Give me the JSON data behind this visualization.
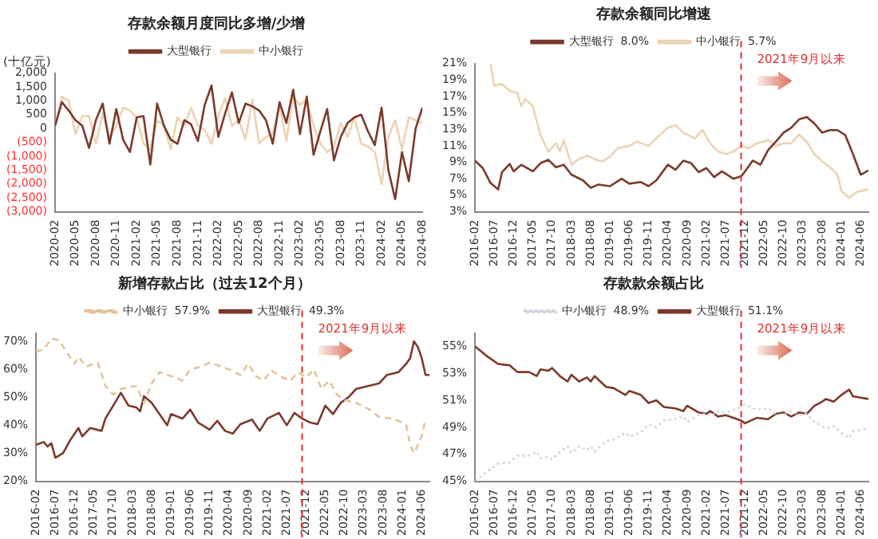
{
  "chart_data": [
    {
      "type": "line",
      "title": "存款余额月度同比多增/少增",
      "ylabel": "(十亿元)",
      "legend": "top",
      "xlim": [
        "2020-02",
        "2024-08"
      ],
      "ylim": [
        -3000,
        2000
      ],
      "xticks": [
        "2020-02",
        "2020-05",
        "2020-08",
        "2020-11",
        "2021-02",
        "2021-05",
        "2021-08",
        "2021-11",
        "2022-02",
        "2022-05",
        "2022-08",
        "2022-11",
        "2023-02",
        "2023-05",
        "2023-08",
        "2023-11",
        "2024-02",
        "2024-05",
        "2024-08"
      ],
      "yticks": [
        {
          "value": 2000,
          "label": "2,000"
        },
        {
          "value": 1500,
          "label": "1,500"
        },
        {
          "value": 1000,
          "label": "1,000"
        },
        500,
        0,
        {
          "value": -500,
          "label": "(500)"
        },
        {
          "value": -1000,
          "label": "(1,000)"
        },
        {
          "value": -1500,
          "label": "(1,500)"
        },
        {
          "value": -2000,
          "label": "(2,000)"
        },
        {
          "value": -2500,
          "label": "(2,500)"
        },
        {
          "value": -3000,
          "label": "(3,000)"
        }
      ],
      "x": [
        "2020-02",
        "2020-03",
        "2020-04",
        "2020-05",
        "2020-06",
        "2020-07",
        "2020-08",
        "2020-09",
        "2020-10",
        "2020-11",
        "2020-12",
        "2021-01",
        "2021-02",
        "2021-03",
        "2021-04",
        "2021-05",
        "2021-06",
        "2021-07",
        "2021-08",
        "2021-09",
        "2021-10",
        "2021-11",
        "2021-12",
        "2022-01",
        "2022-02",
        "2022-03",
        "2022-04",
        "2022-05",
        "2022-06",
        "2022-07",
        "2022-08",
        "2022-09",
        "2022-10",
        "2022-11",
        "2022-12",
        "2023-01",
        "2023-02",
        "2023-03",
        "2023-04",
        "2023-05",
        "2023-06",
        "2023-07",
        "2023-08",
        "2023-09",
        "2023-10",
        "2023-11",
        "2023-12",
        "2024-01",
        "2024-02",
        "2024-03",
        "2024-04",
        "2024-05",
        "2024-06",
        "2024-07",
        "2024-08"
      ],
      "series": [
        {
          "name": "大型银行",
          "color": "#7b3a2c",
          "values": [
            100,
            950,
            650,
            300,
            100,
            -700,
            300,
            900,
            -550,
            700,
            -400,
            -850,
            400,
            450,
            -1300,
            900,
            100,
            -400,
            -550,
            300,
            150,
            -450,
            850,
            1550,
            -300,
            550,
            1300,
            200,
            900,
            800,
            650,
            300,
            -550,
            950,
            200,
            1400,
            -200,
            1150,
            -950,
            -100,
            700,
            -1150,
            -300,
            200,
            400,
            500,
            -100,
            -600,
            750,
            -1500,
            -2550,
            -850,
            -1900,
            0,
            750
          ]
        },
        {
          "name": "中小银行",
          "color": "#ecd3b4",
          "values": [
            100,
            1150,
            1000,
            -200,
            450,
            450,
            -550,
            550,
            -300,
            100,
            750,
            650,
            400,
            -550,
            -750,
            300,
            100,
            -750,
            400,
            100,
            750,
            100,
            -50,
            -550,
            450,
            1100,
            100,
            300,
            -400,
            1050,
            -550,
            -300,
            -200,
            850,
            -450,
            1150,
            850,
            1050,
            100,
            -550,
            -850,
            -650,
            200,
            -300,
            400,
            -550,
            -650,
            -850,
            -2000,
            -300,
            300,
            -750,
            400,
            300,
            200
          ]
        }
      ]
    },
    {
      "type": "line",
      "title": "存款余额同比增速",
      "legend": "top",
      "xlim": [
        "2016-02",
        "2024-08"
      ],
      "ylim": [
        3,
        21
      ],
      "xticks": [
        "2016-02",
        "2016-07",
        "2016-12",
        "2017-05",
        "2017-10",
        "2018-03",
        "2018-08",
        "2019-01",
        "2019-06",
        "2019-11",
        "2020-04",
        "2020-09",
        "2021-02",
        "2021-07",
        "2021-12",
        "2022-05",
        "2022-10",
        "2023-03",
        "2023-08",
        "2024-01",
        "2024-06"
      ],
      "yticks": [
        {
          "value": 21,
          "label": "21%"
        },
        {
          "value": 19,
          "label": "19%"
        },
        {
          "value": 17,
          "label": "17%"
        },
        {
          "value": 15,
          "label": "15%"
        },
        {
          "value": 13,
          "label": "13%"
        },
        {
          "value": 11,
          "label": "11%"
        },
        {
          "value": 9,
          "label": "9%"
        },
        {
          "value": 7,
          "label": "7%"
        },
        {
          "value": 5,
          "label": "5%"
        },
        {
          "value": 3,
          "label": "3%"
        }
      ],
      "ref_lines": [
        {
          "axis": "x",
          "value": "2021-11",
          "label": "2021年9月以来",
          "color": "#e03030",
          "line_style": "dashed"
        }
      ],
      "series": [
        {
          "name": "大型银行  8.0%",
          "color": "#7b3a2c",
          "x": [
            "2016-02",
            "2016-04",
            "2016-06",
            "2016-08",
            "2016-09",
            "2016-11",
            "2016-12",
            "2017-02",
            "2017-05",
            "2017-07",
            "2017-09",
            "2017-11",
            "2018-01",
            "2018-03",
            "2018-06",
            "2018-08",
            "2018-10",
            "2019-01",
            "2019-04",
            "2019-06",
            "2019-09",
            "2019-11",
            "2020-01",
            "2020-04",
            "2020-06",
            "2020-08",
            "2020-10",
            "2020-12",
            "2021-02",
            "2021-04",
            "2021-06",
            "2021-09",
            "2021-11",
            "2021-12",
            "2022-02",
            "2022-04",
            "2022-06",
            "2022-08",
            "2022-10",
            "2022-12",
            "2023-02",
            "2023-04",
            "2023-06",
            "2023-08",
            "2023-10",
            "2023-12",
            "2024-02",
            "2024-04",
            "2024-06",
            "2024-08"
          ],
          "values": [
            9.2,
            8.3,
            6.5,
            5.7,
            7.8,
            8.8,
            7.9,
            8.7,
            7.9,
            8.9,
            9.3,
            8.4,
            8.7,
            7.5,
            6.8,
            5.9,
            6.3,
            6.1,
            7.0,
            6.4,
            6.6,
            6.1,
            6.8,
            8.7,
            8.1,
            9.2,
            8.9,
            7.8,
            8.3,
            7.2,
            7.9,
            7.0,
            7.3,
            7.9,
            9.2,
            8.7,
            10.5,
            11.5,
            12.6,
            13.2,
            14.2,
            14.5,
            13.7,
            12.6,
            12.9,
            12.9,
            12.3,
            10.0,
            7.5,
            8.0
          ]
        },
        {
          "name": "中小银行  5.7%",
          "color": "#ecd3b4",
          "x": [
            "2016-06",
            "2016-07",
            "2016-09",
            "2016-11",
            "2017-01",
            "2017-02",
            "2017-03",
            "2017-05",
            "2017-07",
            "2017-09",
            "2017-11",
            "2017-12",
            "2018-01",
            "2018-03",
            "2018-05",
            "2018-07",
            "2018-09",
            "2018-11",
            "2019-01",
            "2019-03",
            "2019-06",
            "2019-08",
            "2019-11",
            "2020-01",
            "2020-04",
            "2020-06",
            "2020-08",
            "2020-11",
            "2021-01",
            "2021-03",
            "2021-05",
            "2021-07",
            "2021-09",
            "2021-11",
            "2022-01",
            "2022-03",
            "2022-06",
            "2022-08",
            "2022-10",
            "2022-12",
            "2023-02",
            "2023-04",
            "2023-06",
            "2023-08",
            "2023-10",
            "2023-12",
            "2024-01",
            "2024-03",
            "2024-05",
            "2024-08"
          ],
          "values": [
            21,
            18.3,
            18.5,
            17.7,
            17.4,
            15.8,
            16.7,
            15.8,
            12.3,
            10.3,
            11.3,
            10.3,
            11.7,
            8.7,
            9.4,
            9.8,
            9.4,
            9.1,
            9.7,
            10.7,
            11.0,
            11.5,
            11.0,
            11.9,
            13.2,
            13.5,
            12.6,
            11.9,
            12.9,
            11.3,
            10.3,
            10.0,
            10.3,
            11.0,
            10.7,
            11.3,
            11.7,
            11.0,
            11.3,
            11.3,
            12.4,
            11.5,
            10.0,
            9.1,
            8.4,
            7.5,
            5.5,
            4.7,
            5.4,
            5.7
          ]
        }
      ]
    },
    {
      "type": "line",
      "title": "新增存款占比（过去12个月）",
      "legend": "top",
      "xlim": [
        "2016-02",
        "2024-08"
      ],
      "ylim": [
        20,
        73
      ],
      "xticks": [
        "2016-02",
        "2016-07",
        "2016-12",
        "2017-05",
        "2017-10",
        "2018-03",
        "2018-08",
        "2019-01",
        "2019-06",
        "2019-11",
        "2020-04",
        "2020-09",
        "2021-02",
        "2021-07",
        "2021-12",
        "2022-05",
        "2022-10",
        "2023-03",
        "2023-08",
        "2024-01",
        "2024-06"
      ],
      "yticks": [
        {
          "value": 70,
          "label": "70%"
        },
        {
          "value": 60,
          "label": "60%"
        },
        {
          "value": 50,
          "label": "50%"
        },
        {
          "value": 40,
          "label": "40%"
        },
        {
          "value": 30,
          "label": "30%"
        },
        {
          "value": 20,
          "label": "20%"
        }
      ],
      "ref_lines": [
        {
          "axis": "x",
          "value": "2021-11",
          "label": "2021年9月以来",
          "color": "#e03030",
          "line_style": "dashed"
        }
      ],
      "series": [
        {
          "name": "中小银行  57.9%",
          "color": "#e3c39c",
          "line_style": "dashed",
          "x": [
            "2016-02",
            "2016-04",
            "2016-06",
            "2016-08",
            "2016-10",
            "2016-12",
            "2017-01",
            "2017-03",
            "2017-05",
            "2017-06",
            "2017-08",
            "2017-10",
            "2017-12",
            "2018-02",
            "2018-04",
            "2018-06",
            "2018-08",
            "2018-10",
            "2019-01",
            "2019-04",
            "2019-06",
            "2019-09",
            "2019-11",
            "2020-02",
            "2020-04",
            "2020-07",
            "2020-09",
            "2020-11",
            "2021-01",
            "2021-03",
            "2021-06",
            "2021-08",
            "2021-10",
            "2021-12",
            "2022-02",
            "2022-04",
            "2022-06",
            "2022-08",
            "2022-10",
            "2023-01",
            "2023-04",
            "2023-07",
            "2023-10",
            "2023-12",
            "2024-02",
            "2024-03",
            "2024-04",
            "2024-06",
            "2024-07"
          ],
          "values": [
            66.4,
            67,
            71,
            70.4,
            66,
            62,
            64.4,
            61,
            62,
            62.4,
            54,
            51,
            53,
            53.6,
            54,
            48,
            55,
            59,
            57.6,
            56,
            60,
            61,
            62.4,
            61,
            60,
            58,
            62,
            57.6,
            56,
            59.6,
            57,
            56,
            59,
            57,
            60,
            53,
            56,
            51,
            49,
            48,
            46,
            43,
            42.4,
            41.6,
            40,
            33,
            30,
            36,
            42.4
          ]
        },
        {
          "name": "大型银行  49.3%",
          "color": "#7b3a2c",
          "x": [
            "2016-02",
            "2016-04",
            "2016-05",
            "2016-06",
            "2016-07",
            "2016-09",
            "2016-11",
            "2017-01",
            "2017-02",
            "2017-04",
            "2017-07",
            "2017-08",
            "2017-10",
            "2017-12",
            "2018-02",
            "2018-04",
            "2018-05",
            "2018-06",
            "2018-08",
            "2018-10",
            "2018-12",
            "2019-01",
            "2019-04",
            "2019-06",
            "2019-08",
            "2019-11",
            "2020-01",
            "2020-03",
            "2020-05",
            "2020-07",
            "2020-10",
            "2020-12",
            "2021-02",
            "2021-05",
            "2021-07",
            "2021-09",
            "2021-11",
            "2022-01",
            "2022-03",
            "2022-05",
            "2022-07",
            "2022-09",
            "2022-11",
            "2023-01",
            "2023-04",
            "2023-07",
            "2023-09",
            "2023-12",
            "2024-02",
            "2024-03",
            "2024-04",
            "2024-05",
            "2024-06",
            "2024-07",
            "2024-08"
          ],
          "values": [
            33,
            34,
            32.4,
            33.6,
            28.4,
            30,
            35,
            39,
            36,
            39,
            38,
            42.4,
            47,
            51.6,
            47,
            46.4,
            45,
            50.4,
            48,
            44,
            40,
            44,
            42.4,
            45.6,
            41,
            38.4,
            41.6,
            38,
            37,
            40.4,
            42,
            38,
            42.4,
            44.4,
            40,
            44.4,
            42.4,
            41,
            40.4,
            47,
            44,
            48,
            50,
            53,
            54,
            55,
            58,
            59,
            62,
            64,
            70,
            68,
            64,
            58,
            58
          ]
        }
      ]
    },
    {
      "type": "line",
      "title": "存款款余额占比",
      "legend": "top",
      "xlim": [
        "2016-02",
        "2024-08"
      ],
      "ylim": [
        45,
        56
      ],
      "xticks": [
        "2016-02",
        "2016-07",
        "2016-12",
        "2017-05",
        "2017-10",
        "2018-03",
        "2018-08",
        "2019-01",
        "2019-06",
        "2019-11",
        "2020-04",
        "2020-09",
        "2021-02",
        "2021-07",
        "2021-12",
        "2022-05",
        "2022-10",
        "2023-03",
        "2023-08",
        "2024-01",
        "2024-06"
      ],
      "yticks": [
        {
          "value": 55,
          "label": "55%"
        },
        {
          "value": 53,
          "label": "53%"
        },
        {
          "value": 51,
          "label": "51%"
        },
        {
          "value": 49,
          "label": "49%"
        },
        {
          "value": 47,
          "label": "47%"
        },
        {
          "value": 45,
          "label": "45%"
        }
      ],
      "ref_lines": [
        {
          "axis": "x",
          "value": "2021-11",
          "label": "2021年9月以来",
          "color": "#e03030",
          "line_style": "dashed"
        }
      ],
      "series": [
        {
          "name": "中小银行  48.9%",
          "color": "#d6d6e0",
          "line_style": "dotted",
          "x": [
            "2016-02",
            "2016-05",
            "2016-08",
            "2016-11",
            "2017-01",
            "2017-04",
            "2017-06",
            "2017-07",
            "2017-09",
            "2017-10",
            "2017-12",
            "2018-02",
            "2018-03",
            "2018-05",
            "2018-07",
            "2018-08",
            "2018-09",
            "2018-12",
            "2019-02",
            "2019-05",
            "2019-06",
            "2019-09",
            "2019-11",
            "2020-01",
            "2020-03",
            "2020-06",
            "2020-08",
            "2020-09",
            "2020-12",
            "2021-02",
            "2021-03",
            "2021-05",
            "2021-07",
            "2021-09",
            "2021-11",
            "2021-12",
            "2022-03",
            "2022-06",
            "2022-08",
            "2022-10",
            "2022-12",
            "2023-02",
            "2023-04",
            "2023-06",
            "2023-08",
            "2023-09",
            "2023-11",
            "2024-01",
            "2024-03",
            "2024-04",
            "2024-06",
            "2024-08"
          ],
          "values": [
            45,
            45.7,
            46.3,
            46.4,
            46.9,
            46.9,
            47.2,
            46.7,
            46.8,
            46.6,
            47.2,
            47.6,
            47.1,
            47.6,
            47.3,
            47.6,
            47.2,
            48.0,
            48.1,
            48.6,
            48.3,
            48.6,
            49.2,
            49.0,
            49.5,
            49.6,
            49.8,
            49.4,
            49.9,
            50.0,
            49.8,
            50.2,
            50.1,
            50.3,
            50.5,
            50.7,
            50.3,
            50.4,
            50.0,
            49.9,
            50.2,
            49.9,
            50.0,
            49.4,
            49.1,
            48.9,
            49.1,
            48.6,
            48.2,
            48.7,
            48.8,
            48.9
          ]
        },
        {
          "name": "大型银行  51.1%",
          "color": "#7b3a2c",
          "x": [
            "2016-02",
            "2016-05",
            "2016-08",
            "2016-11",
            "2017-01",
            "2017-04",
            "2017-06",
            "2017-07",
            "2017-09",
            "2017-10",
            "2017-12",
            "2018-02",
            "2018-03",
            "2018-05",
            "2018-07",
            "2018-08",
            "2018-09",
            "2018-12",
            "2019-02",
            "2019-05",
            "2019-06",
            "2019-09",
            "2019-11",
            "2020-01",
            "2020-03",
            "2020-06",
            "2020-08",
            "2020-09",
            "2020-12",
            "2021-02",
            "2021-03",
            "2021-05",
            "2021-07",
            "2021-09",
            "2021-11",
            "2021-12",
            "2022-03",
            "2022-06",
            "2022-08",
            "2022-10",
            "2022-12",
            "2023-02",
            "2023-04",
            "2023-06",
            "2023-08",
            "2023-09",
            "2023-11",
            "2024-01",
            "2024-03",
            "2024-04",
            "2024-06",
            "2024-08"
          ],
          "values": [
            55,
            54.3,
            53.7,
            53.6,
            53.1,
            53.1,
            52.8,
            53.3,
            53.2,
            53.4,
            52.8,
            52.4,
            52.9,
            52.4,
            52.7,
            52.4,
            52.8,
            52.0,
            51.9,
            51.4,
            51.7,
            51.4,
            50.8,
            51.0,
            50.5,
            50.4,
            50.2,
            50.6,
            50.1,
            50.0,
            50.2,
            49.8,
            49.9,
            49.7,
            49.5,
            49.3,
            49.7,
            49.6,
            50.0,
            50.1,
            49.8,
            50.1,
            50.0,
            50.6,
            50.9,
            51.1,
            50.9,
            51.4,
            51.8,
            51.3,
            51.2,
            51.1
          ]
        }
      ]
    }
  ]
}
